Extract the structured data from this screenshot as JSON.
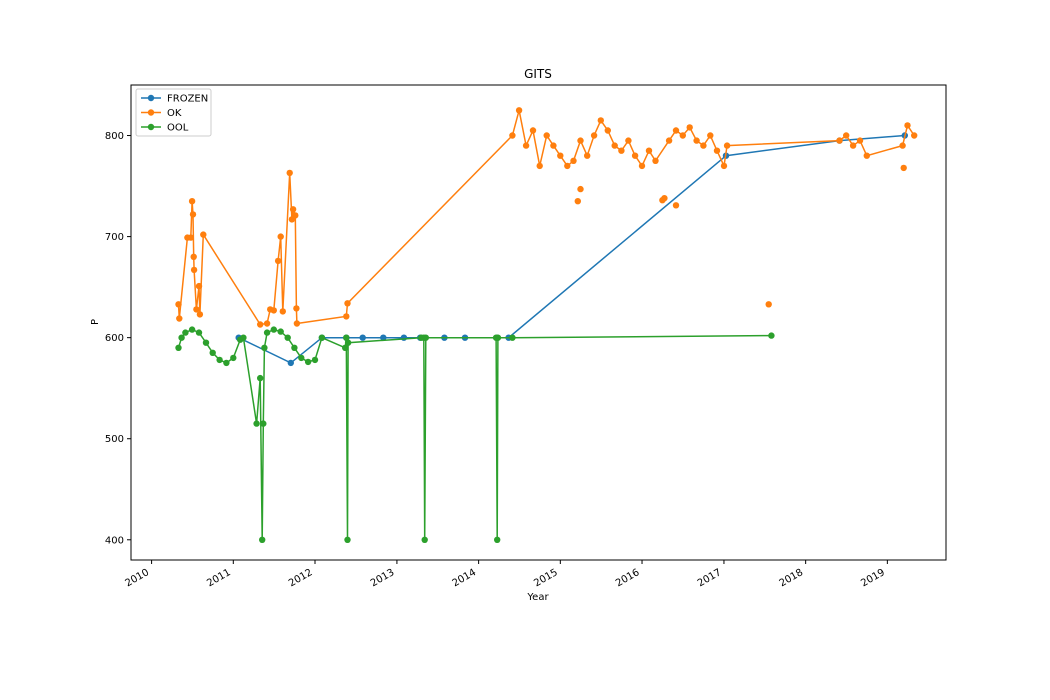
{
  "chart_data": {
    "type": "line",
    "title": "GITS",
    "xlabel": "Year",
    "ylabel": "P",
    "xlim": [
      "2009-10-01",
      "2019-09-20"
    ],
    "ylim": [
      380,
      850
    ],
    "x_ticks": [
      "2010",
      "2011",
      "2012",
      "2013",
      "2014",
      "2015",
      "2016",
      "2017",
      "2018",
      "2019"
    ],
    "y_ticks": [
      400,
      500,
      600,
      700,
      800
    ],
    "grid": false,
    "legend_position": "top-left",
    "series": [
      {
        "name": "FROZEN",
        "color": "#1f77b4",
        "points": [
          [
            "2011-01-25",
            600
          ],
          [
            "2011-09-15",
            575
          ],
          [
            "2012-02-01",
            600
          ],
          [
            "2012-05-20",
            600
          ],
          [
            "2012-08-01",
            600
          ],
          [
            "2012-11-01",
            600
          ],
          [
            "2013-02-01",
            600
          ],
          [
            "2013-04-15",
            600
          ],
          [
            "2013-08-01",
            600
          ],
          [
            "2013-11-01",
            600
          ],
          [
            "2014-03-25",
            600
          ],
          [
            "2014-05-15",
            600
          ],
          [
            "2017-01-10",
            780
          ],
          [
            "2018-06-01",
            795
          ],
          [
            "2019-03-20",
            800
          ]
        ]
      },
      {
        "name": "OK",
        "color": "#ff7f0e",
        "points": [
          [
            "2010-05-01",
            633
          ],
          [
            "2010-05-05",
            619
          ],
          [
            "2010-06-10",
            699
          ],
          [
            "2010-06-25",
            699
          ],
          [
            "2010-07-01",
            735
          ],
          [
            "2010-07-05",
            722
          ],
          [
            "2010-07-08",
            680
          ],
          [
            "2010-07-10",
            667
          ],
          [
            "2010-07-20",
            628
          ],
          [
            "2010-08-01",
            651
          ],
          [
            "2010-08-05",
            623
          ],
          [
            "2010-08-20",
            702
          ],
          [
            "2011-05-01",
            613
          ],
          [
            "2011-06-01",
            614
          ],
          [
            "2011-06-15",
            628
          ],
          [
            "2011-07-01",
            627
          ],
          [
            "2011-07-20",
            676
          ],
          [
            "2011-08-01",
            700
          ],
          [
            "2011-08-10",
            626
          ],
          [
            "2011-09-10",
            763
          ],
          [
            "2011-09-20",
            717
          ],
          [
            "2011-09-25",
            727
          ],
          [
            "2011-10-05",
            721
          ],
          [
            "2011-10-10",
            629
          ],
          [
            "2011-10-12",
            614
          ],
          [
            "2012-05-20",
            621
          ],
          [
            "2012-05-25",
            634
          ],
          [
            "2014-06-01",
            800
          ],
          [
            "2014-07-01",
            825
          ],
          [
            "2014-08-01",
            790
          ],
          [
            "2014-09-01",
            805
          ],
          [
            "2014-10-01",
            770
          ],
          [
            "2014-11-01",
            800
          ],
          [
            "2014-12-01",
            790
          ],
          [
            "2015-01-01",
            780
          ],
          [
            "2015-02-01",
            770
          ],
          [
            "2015-03-01",
            775
          ],
          [
            "2015-04-01",
            795
          ],
          [
            "2015-05-01",
            780
          ],
          [
            "2015-06-01",
            800
          ],
          [
            "2015-07-01",
            815
          ],
          [
            "2015-08-01",
            805
          ],
          [
            "2015-09-01",
            790
          ],
          [
            "2015-10-01",
            785
          ],
          [
            "2015-11-01",
            795
          ],
          [
            "2015-12-01",
            780
          ],
          [
            "2016-01-01",
            770
          ],
          [
            "2016-02-01",
            785
          ],
          [
            "2016-03-01",
            775
          ],
          [
            "2016-05-01",
            795
          ],
          [
            "2016-06-01",
            805
          ],
          [
            "2016-07-01",
            800
          ],
          [
            "2016-08-01",
            808
          ],
          [
            "2016-09-01",
            795
          ],
          [
            "2016-10-01",
            790
          ],
          [
            "2016-11-01",
            800
          ],
          [
            "2016-12-01",
            785
          ],
          [
            "2017-01-01",
            770
          ],
          [
            "2017-01-15",
            790
          ],
          [
            "2018-06-01",
            795
          ],
          [
            "2018-07-01",
            800
          ],
          [
            "2018-08-01",
            790
          ],
          [
            "2018-09-01",
            795
          ],
          [
            "2018-10-01",
            780
          ],
          [
            "2019-03-10",
            790
          ],
          [
            "2019-04-01",
            810
          ],
          [
            "2019-05-01",
            800
          ]
        ],
        "isolated_points": [
          [
            "2015-03-20",
            735
          ],
          [
            "2015-04-01",
            747
          ],
          [
            "2016-04-01",
            736
          ],
          [
            "2016-04-10",
            738
          ],
          [
            "2016-06-01",
            731
          ],
          [
            "2017-07-20",
            633
          ],
          [
            "2019-03-15",
            768
          ]
        ]
      },
      {
        "name": "OOL",
        "color": "#2ca02c",
        "points": [
          [
            "2010-05-01",
            590
          ],
          [
            "2010-05-15",
            600
          ],
          [
            "2010-06-01",
            605
          ],
          [
            "2010-07-01",
            608
          ],
          [
            "2010-08-01",
            605
          ],
          [
            "2010-09-01",
            595
          ],
          [
            "2010-10-01",
            585
          ],
          [
            "2010-11-01",
            578
          ],
          [
            "2010-12-01",
            575
          ],
          [
            "2011-01-01",
            580
          ],
          [
            "2011-02-01",
            598
          ],
          [
            "2011-02-15",
            600
          ],
          [
            "2011-04-15",
            515
          ],
          [
            "2011-05-01",
            560
          ],
          [
            "2011-05-10",
            400
          ],
          [
            "2011-05-15",
            515
          ],
          [
            "2011-05-20",
            590
          ],
          [
            "2011-06-01",
            605
          ],
          [
            "2011-07-01",
            608
          ],
          [
            "2011-08-01",
            606
          ],
          [
            "2011-09-01",
            600
          ],
          [
            "2011-10-01",
            590
          ],
          [
            "2011-11-01",
            580
          ],
          [
            "2011-12-01",
            576
          ],
          [
            "2012-01-01",
            578
          ],
          [
            "2012-02-01",
            600
          ],
          [
            "2012-05-15",
            590
          ],
          [
            "2012-05-20",
            600
          ],
          [
            "2012-05-25",
            400
          ],
          [
            "2012-05-28",
            595
          ],
          [
            "2013-04-20",
            600
          ],
          [
            "2013-05-01",
            600
          ],
          [
            "2013-05-05",
            400
          ],
          [
            "2013-05-10",
            600
          ],
          [
            "2014-03-20",
            600
          ],
          [
            "2014-03-25",
            400
          ],
          [
            "2014-03-28",
            600
          ],
          [
            "2014-06-01",
            600
          ],
          [
            "2017-08-01",
            602
          ]
        ]
      }
    ]
  }
}
